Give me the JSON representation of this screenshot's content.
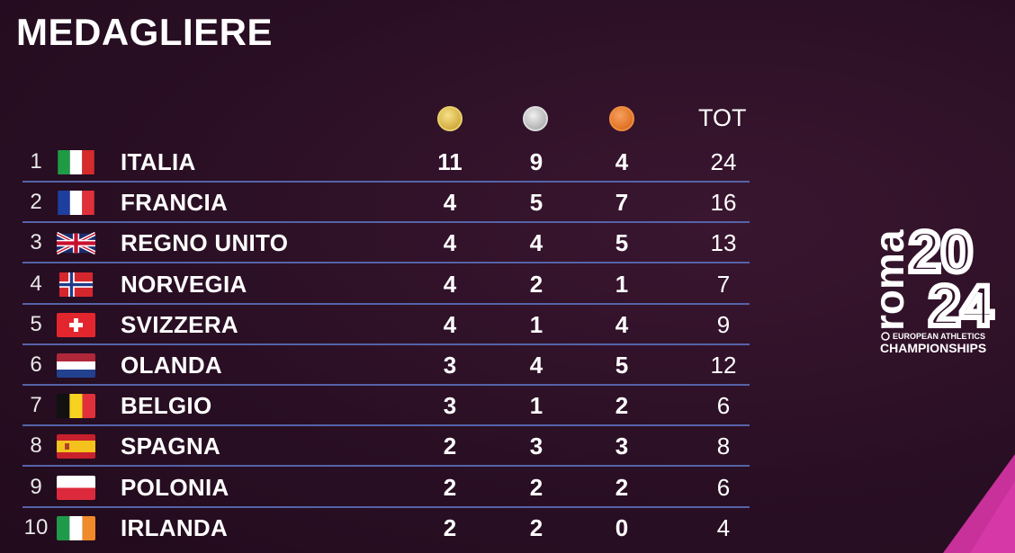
{
  "title": "MEDAGLIERE",
  "header": {
    "tot": "TOT",
    "medal_icons": [
      "gold-medal-icon",
      "silver-medal-icon",
      "bronze-medal-icon"
    ]
  },
  "rows": [
    {
      "rank": "1",
      "country": "ITALIA",
      "gold": "11",
      "silver": "9",
      "bronze": "4",
      "tot": "24",
      "flag": "italy"
    },
    {
      "rank": "2",
      "country": "FRANCIA",
      "gold": "4",
      "silver": "5",
      "bronze": "7",
      "tot": "16",
      "flag": "france"
    },
    {
      "rank": "3",
      "country": "REGNO UNITO",
      "gold": "4",
      "silver": "4",
      "bronze": "5",
      "tot": "13",
      "flag": "uk"
    },
    {
      "rank": "4",
      "country": "NORVEGIA",
      "gold": "4",
      "silver": "2",
      "bronze": "1",
      "tot": "7",
      "flag": "norway"
    },
    {
      "rank": "5",
      "country": "SVIZZERA",
      "gold": "4",
      "silver": "1",
      "bronze": "4",
      "tot": "9",
      "flag": "switzerland"
    },
    {
      "rank": "6",
      "country": "OLANDA",
      "gold": "3",
      "silver": "4",
      "bronze": "5",
      "tot": "12",
      "flag": "netherlands"
    },
    {
      "rank": "7",
      "country": "BELGIO",
      "gold": "3",
      "silver": "1",
      "bronze": "2",
      "tot": "6",
      "flag": "belgium"
    },
    {
      "rank": "8",
      "country": "SPAGNA",
      "gold": "2",
      "silver": "3",
      "bronze": "3",
      "tot": "8",
      "flag": "spain"
    },
    {
      "rank": "9",
      "country": "POLONIA",
      "gold": "2",
      "silver": "2",
      "bronze": "2",
      "tot": "6",
      "flag": "poland"
    },
    {
      "rank": "10",
      "country": "IRLANDA",
      "gold": "2",
      "silver": "2",
      "bronze": "0",
      "tot": "4",
      "flag": "ireland"
    }
  ],
  "logo": {
    "city": "roma",
    "year_top": "20",
    "year_bottom": "24",
    "line1": "EUROPEAN ATHLETICS",
    "line2": "CHAMPIONSHIPS"
  },
  "colors": {
    "background": "#2a0f24",
    "row_divider": "#5563a8",
    "accent_corner": "#c8309a"
  }
}
